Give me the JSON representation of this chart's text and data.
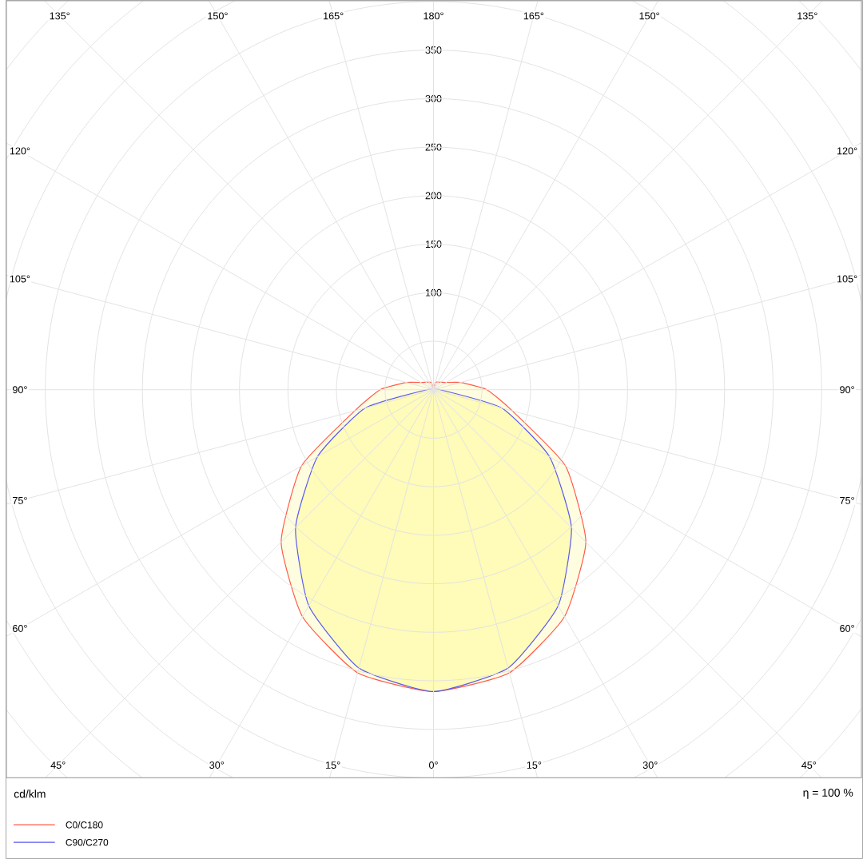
{
  "chart_data": {
    "type": "radar",
    "categories": [
      "180°",
      "165°",
      "150°",
      "135°",
      "120°",
      "105°",
      "90°",
      "75°",
      "60°",
      "45°",
      "30°",
      "15°",
      "0°",
      "15°",
      "30°",
      "45°",
      "60°",
      "75°",
      "90°",
      "105°",
      "120°",
      "135°",
      "150°",
      "165°"
    ],
    "series": [
      {
        "name": "C0/C180",
        "color": "#ff5a4a",
        "values": [
          0,
          8,
          9,
          11,
          15,
          29,
          55,
          84,
          157,
          222,
          270,
          302,
          311,
          302,
          270,
          222,
          157,
          84,
          55,
          29,
          15,
          11,
          9,
          8
        ]
      },
      {
        "name": "C90/C270",
        "color": "#5a5aee",
        "values": [
          0,
          0,
          0,
          0,
          0,
          0,
          7,
          73,
          138,
          201,
          257,
          297,
          311,
          297,
          257,
          201,
          138,
          73,
          7,
          0,
          0,
          0,
          0,
          0
        ]
      }
    ],
    "ylim": [
      0,
      600
    ],
    "yticks": [
      100,
      150,
      200,
      250,
      300,
      350
    ],
    "grid": true,
    "legend": "bottom left",
    "annotations": [
      "cd/klm",
      "η = 100 %"
    ]
  }
}
